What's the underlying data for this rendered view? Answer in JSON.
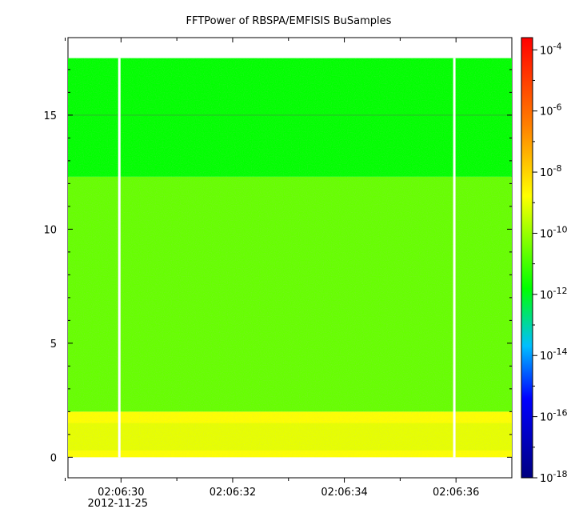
{
  "chart_data": {
    "type": "heatmap",
    "title": "FFTPower of RBSPA/EMFISIS  BuSamples",
    "xlabel": "",
    "ylabel": "",
    "x_ticks": [
      {
        "label": "02:06:30",
        "sublabel": "2012-11-25",
        "t": 30
      },
      {
        "label": "02:06:32",
        "sublabel": "",
        "t": 32
      },
      {
        "label": "02:06:34",
        "sublabel": "",
        "t": 34
      },
      {
        "label": "02:06:36",
        "sublabel": "",
        "t": 36
      }
    ],
    "x_minor_ticks": [
      29,
      31,
      33,
      35
    ],
    "xlim_seconds_after_02_06": [
      29.05,
      37.0
    ],
    "y_ticks": [
      0,
      5,
      10,
      15
    ],
    "ylim": [
      -0.9,
      18.4
    ],
    "data_extent_y": [
      0,
      17.5
    ],
    "data_gaps_at_seconds": [
      29.97,
      35.97
    ],
    "frequency_bands": [
      {
        "y_range": [
          0,
          2.0
        ],
        "log10_power": -8.8,
        "level": "high (orange/yellow)"
      },
      {
        "y_range": [
          2.0,
          12.3
        ],
        "log10_power": -10.6,
        "level": "mid (green)"
      },
      {
        "y_range": [
          12.3,
          17.5
        ],
        "log10_power": -11.8,
        "level": "low (cyan-green)"
      }
    ],
    "line_feature_y": 15.0,
    "colorbar": {
      "scale": "log",
      "range": [
        -18,
        -3.6
      ],
      "ticks": [
        {
          "base": "10",
          "exp": "-4"
        },
        {
          "base": "10",
          "exp": "-6"
        },
        {
          "base": "10",
          "exp": "-8"
        },
        {
          "base": "10",
          "exp": "-10"
        },
        {
          "base": "10",
          "exp": "-12"
        },
        {
          "base": "10",
          "exp": "-14"
        },
        {
          "base": "10",
          "exp": "-16"
        },
        {
          "base": "10",
          "exp": "-18"
        }
      ],
      "colors": [
        "#000080",
        "#0000ff",
        "#00bfff",
        "#00ff00",
        "#ffff00",
        "#ff8000",
        "#ff0000"
      ]
    },
    "grid": false,
    "legend": "none"
  }
}
